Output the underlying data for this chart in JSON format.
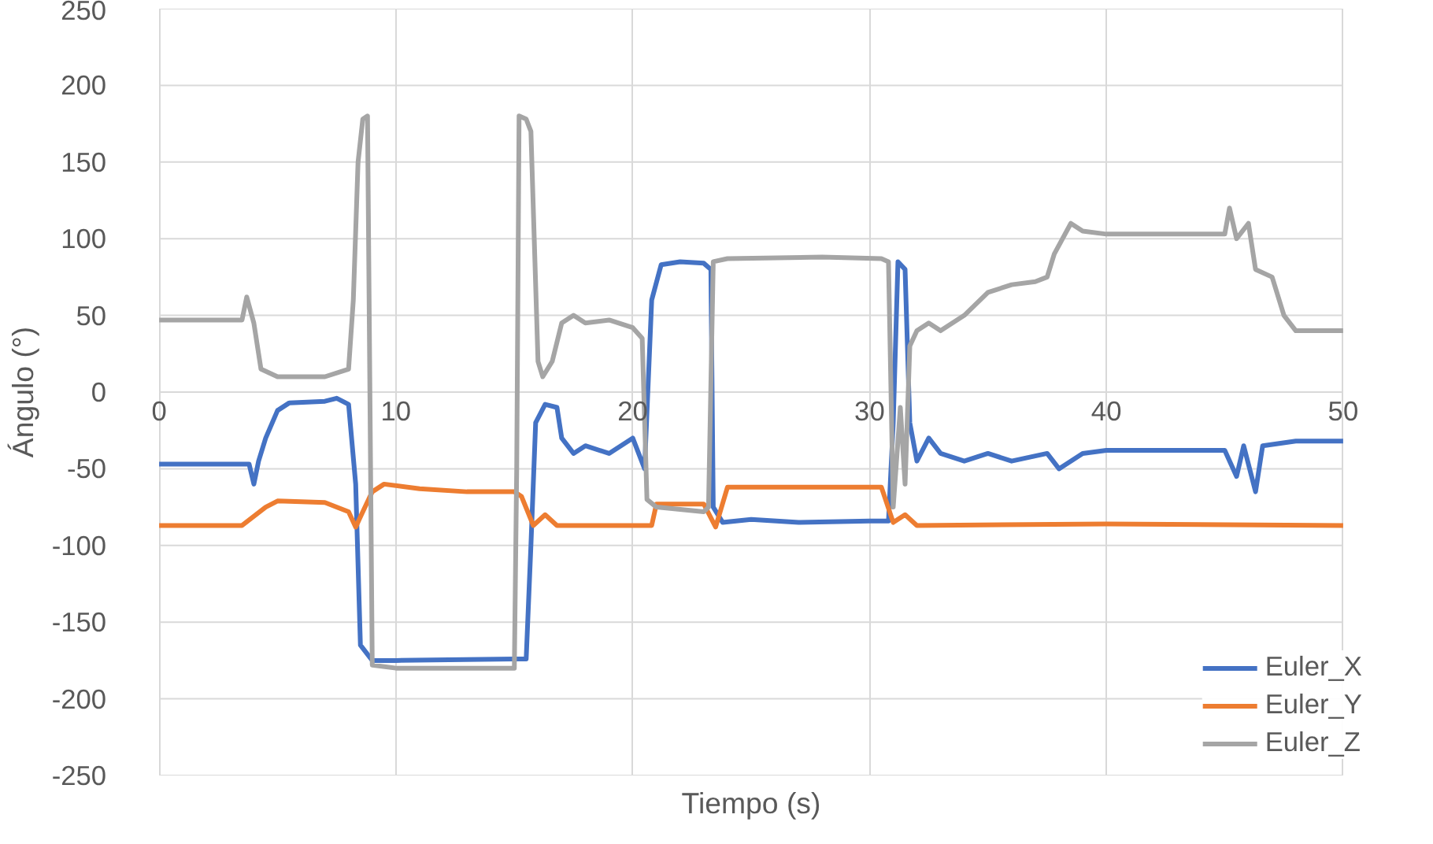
{
  "chart_data": {
    "type": "line",
    "xlabel": "Tiempo (s)",
    "ylabel": "Ángulo (°)",
    "xlim": [
      0,
      50
    ],
    "xticks": [
      0,
      10,
      20,
      30,
      40,
      50
    ],
    "ylim": [
      -250,
      250
    ],
    "yticks": [
      -250,
      -200,
      -150,
      -100,
      -50,
      0,
      50,
      100,
      150,
      200,
      250
    ],
    "grid": true,
    "legend": "bottom right",
    "marker": "none",
    "line_style": "solid",
    "series": [
      {
        "name": "Euler_X",
        "color": "#4472c4",
        "x": [
          0,
          3.8,
          4,
          4.2,
          4.5,
          5,
          5.5,
          7,
          7.5,
          8,
          8.3,
          8.5,
          9,
          10,
          15,
          15.5,
          15.7,
          15.9,
          16.3,
          16.8,
          17,
          17.5,
          18,
          19,
          20,
          20.5,
          20.8,
          21.2,
          22,
          23,
          23.3,
          23.4,
          23.8,
          25,
          27,
          30,
          30.8,
          31,
          31.2,
          31.5,
          31.7,
          32,
          32.5,
          33,
          34,
          35,
          36,
          37.5,
          38,
          39,
          40,
          45,
          45.5,
          45.8,
          46.3,
          46.6,
          48,
          50
        ],
        "values": [
          -47,
          -47,
          -60,
          -45,
          -30,
          -12,
          -7,
          -6,
          -4,
          -8,
          -60,
          -165,
          -175,
          -175,
          -174,
          -174,
          -100,
          -20,
          -8,
          -10,
          -30,
          -40,
          -35,
          -40,
          -30,
          -50,
          60,
          83,
          85,
          84,
          80,
          -75,
          -85,
          -83,
          -85,
          -84,
          -84,
          -20,
          85,
          80,
          -20,
          -45,
          -30,
          -40,
          -45,
          -40,
          -45,
          -40,
          -50,
          -40,
          -38,
          -38,
          -55,
          -35,
          -65,
          -35,
          -32,
          -32
        ]
      },
      {
        "name": "Euler_Y",
        "color": "#ed7d31",
        "x": [
          0,
          3.5,
          4.5,
          5,
          7,
          8,
          8.3,
          8.6,
          9,
          9.5,
          11,
          13,
          15,
          15.3,
          15.8,
          16.3,
          16.8,
          20,
          20.8,
          21,
          23,
          23.5,
          24,
          30,
          30.5,
          31,
          31.5,
          32,
          40,
          50
        ],
        "values": [
          -87,
          -87,
          -75,
          -71,
          -72,
          -78,
          -88,
          -78,
          -65,
          -60,
          -63,
          -65,
          -65,
          -68,
          -87,
          -80,
          -87,
          -87,
          -87,
          -73,
          -73,
          -88,
          -62,
          -62,
          -62,
          -85,
          -80,
          -87,
          -86,
          -87
        ]
      },
      {
        "name": "Euler_Z",
        "color": "#a5a5a5",
        "x": [
          0,
          3.5,
          3.7,
          4,
          4.3,
          5,
          7,
          8,
          8.2,
          8.4,
          8.6,
          8.8,
          9,
          10,
          15,
          15.1,
          15.2,
          15.5,
          15.7,
          16,
          16.2,
          16.6,
          17,
          17.5,
          18,
          19,
          20,
          20.4,
          20.6,
          21,
          23,
          23.2,
          23.4,
          24,
          28,
          30.5,
          30.8,
          31,
          31.3,
          31.5,
          31.7,
          32,
          32.5,
          33,
          34,
          35,
          36,
          37,
          37.5,
          37.8,
          38.5,
          39,
          40,
          45,
          45.2,
          45.5,
          46,
          46.3,
          47,
          47.5,
          48,
          50
        ],
        "values": [
          47,
          47,
          62,
          45,
          15,
          10,
          10,
          15,
          60,
          150,
          178,
          180,
          -178,
          -180,
          -180,
          -50,
          180,
          178,
          170,
          20,
          10,
          20,
          45,
          50,
          45,
          47,
          42,
          35,
          -70,
          -75,
          -78,
          -75,
          85,
          87,
          88,
          87,
          85,
          -75,
          -10,
          -60,
          30,
          40,
          45,
          40,
          50,
          65,
          70,
          72,
          75,
          90,
          110,
          105,
          103,
          103,
          120,
          100,
          110,
          80,
          75,
          50,
          40,
          40
        ]
      }
    ]
  }
}
